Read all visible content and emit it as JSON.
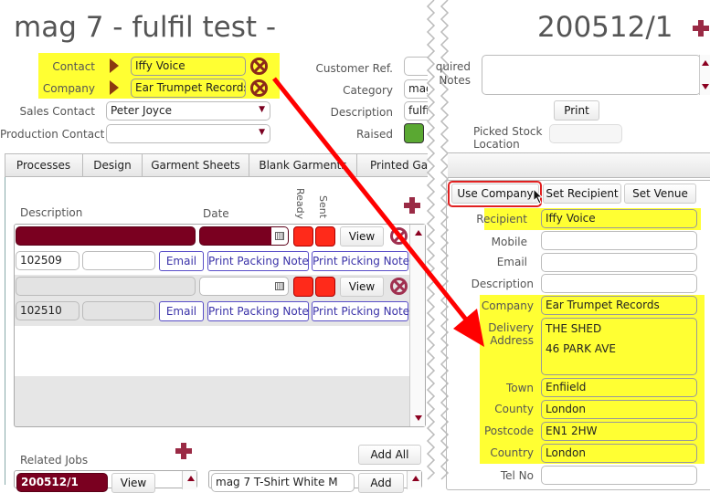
{
  "header": {
    "title": "mag 7 - fulfil test -",
    "job_number": "200512/1"
  },
  "contact": {
    "contact_label": "Contact",
    "contact_value": "Iffy Voice",
    "company_label": "Company",
    "company_value": "Ear Trumpet Records",
    "sales_label": "Sales Contact",
    "sales_value": "Peter Joyce",
    "production_label": "Production Contact",
    "production_value": ""
  },
  "details": {
    "customer_ref_label": "Customer Ref.",
    "customer_ref": "",
    "category_label": "Category",
    "category": "mag",
    "description_label": "Description",
    "description": "fulfil",
    "raised_label": "Raised",
    "raised_color": "#5aa832"
  },
  "tabs": [
    "Processes",
    "Design",
    "Garment Sheets",
    "Blank Garments",
    "Printed Gar"
  ],
  "deliveries": {
    "headers": {
      "description": "Description",
      "date": "Date",
      "ready": "Ready",
      "sent": "Sent"
    },
    "rows": [
      {
        "ref": "102509",
        "view": "View",
        "email": "Email",
        "packing": "Print Packing Note",
        "picking": "Print Picking Note"
      },
      {
        "ref": "102510",
        "view": "View",
        "email": "Email",
        "packing": "Print Packing Note",
        "picking": "Print Picking Note"
      }
    ]
  },
  "related": {
    "label": "Related Jobs",
    "add_all": "Add All",
    "job": "200512/1",
    "view": "View",
    "product": "mag 7 T-Shirt White M",
    "add": "Add"
  },
  "right": {
    "notes_label_1": "quired",
    "notes_label_2": "Notes",
    "print": "Print",
    "picked_label_1": "Picked Stock",
    "picked_label_2": "Location",
    "buttons": {
      "use_company": "Use Company",
      "set_recipient": "Set Recipient",
      "set_venue": "Set Venue"
    },
    "fields": {
      "recipient_label": "Recipient",
      "recipient": "Iffy Voice",
      "mobile_label": "Mobile",
      "email_label": "Email",
      "description_label": "Description",
      "company_label": "Company",
      "company": "Ear Trumpet Records",
      "address_label_1": "Delivery",
      "address_label_2": "Address",
      "address_1": "THE SHED",
      "address_2": "46 PARK AVE",
      "town_label": "Town",
      "town": "Enfiield",
      "county_label": "County",
      "county": "London",
      "postcode_label": "Postcode",
      "postcode": "EN1 2HW",
      "country_label": "Country",
      "country": "London",
      "tel_label": "Tel No"
    }
  },
  "colors": {
    "accent": "#7a0020",
    "highlight": "#ffff33",
    "status_red": "#ff2a1a",
    "annotation_arrow": "#ff0000"
  }
}
